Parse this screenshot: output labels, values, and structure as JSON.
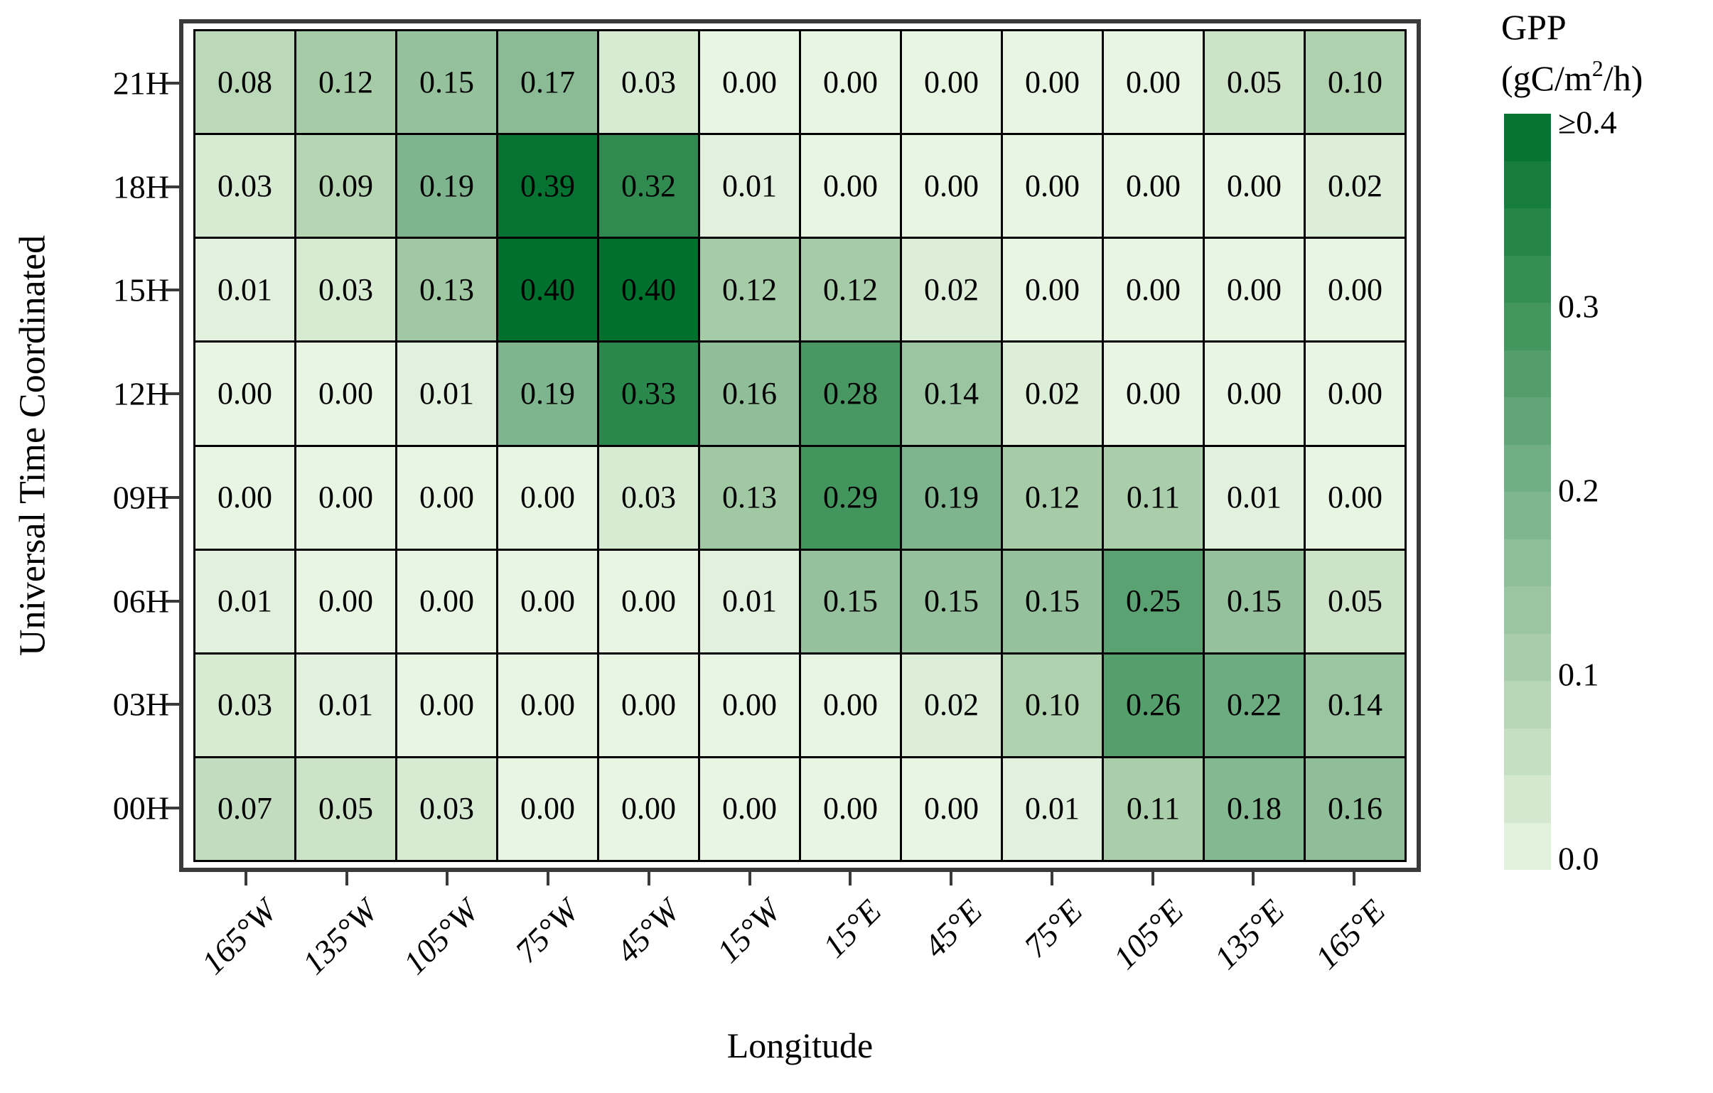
{
  "figure": {
    "background": "#ffffff",
    "frame_color": "#3a3a3a",
    "cell_border_color": "#000000",
    "text_color": "#000000"
  },
  "chart_data": {
    "type": "heatmap",
    "title": "",
    "xlabel": "Longitude",
    "ylabel": "Universal Time Coordinated",
    "x_categories": [
      "165°W",
      "135°W",
      "105°W",
      "75°W",
      "45°W",
      "15°W",
      "15°E",
      "45°E",
      "75°E",
      "105°E",
      "135°E",
      "165°E"
    ],
    "y_categories": [
      "21H",
      "18H",
      "15H",
      "12H",
      "09H",
      "06H",
      "03H",
      "00H"
    ],
    "values": [
      [
        0.08,
        0.12,
        0.15,
        0.17,
        0.03,
        0.0,
        0.0,
        0.0,
        0.0,
        0.0,
        0.05,
        0.1
      ],
      [
        0.03,
        0.09,
        0.19,
        0.39,
        0.32,
        0.01,
        0.0,
        0.0,
        0.0,
        0.0,
        0.0,
        0.02
      ],
      [
        0.01,
        0.03,
        0.13,
        0.4,
        0.4,
        0.12,
        0.12,
        0.02,
        0.0,
        0.0,
        0.0,
        0.0
      ],
      [
        0.0,
        0.0,
        0.01,
        0.19,
        0.33,
        0.16,
        0.28,
        0.14,
        0.02,
        0.0,
        0.0,
        0.0
      ],
      [
        0.0,
        0.0,
        0.0,
        0.0,
        0.03,
        0.13,
        0.29,
        0.19,
        0.12,
        0.11,
        0.01,
        0.0
      ],
      [
        0.01,
        0.0,
        0.0,
        0.0,
        0.0,
        0.01,
        0.15,
        0.15,
        0.15,
        0.25,
        0.15,
        0.05
      ],
      [
        0.03,
        0.01,
        0.0,
        0.0,
        0.0,
        0.0,
        0.0,
        0.02,
        0.1,
        0.26,
        0.22,
        0.14
      ],
      [
        0.07,
        0.05,
        0.03,
        0.0,
        0.0,
        0.0,
        0.0,
        0.0,
        0.01,
        0.11,
        0.18,
        0.16
      ]
    ],
    "value_decimals": 2,
    "grid": "black cell borders",
    "colormap": {
      "name": "greens",
      "anchors": [
        {
          "value": 0.0,
          "color": "#e8f5e2"
        },
        {
          "value": 0.1,
          "color": "#b0d1ae"
        },
        {
          "value": 0.2,
          "color": "#79b28a"
        },
        {
          "value": 0.3,
          "color": "#3d9259"
        },
        {
          "value": 0.4,
          "color": "#00702f"
        }
      ]
    },
    "colorbar": {
      "title": "GPP",
      "unit_prefix": "(gC/m",
      "unit_sup": "2",
      "unit_suffix": "/h)",
      "tick_labels": [
        "≥0.4",
        "0.3",
        "0.2",
        "0.1",
        "0.0"
      ],
      "steps": 16,
      "vmin": 0.0,
      "vmax": 0.4,
      "legend_position": "right"
    }
  }
}
